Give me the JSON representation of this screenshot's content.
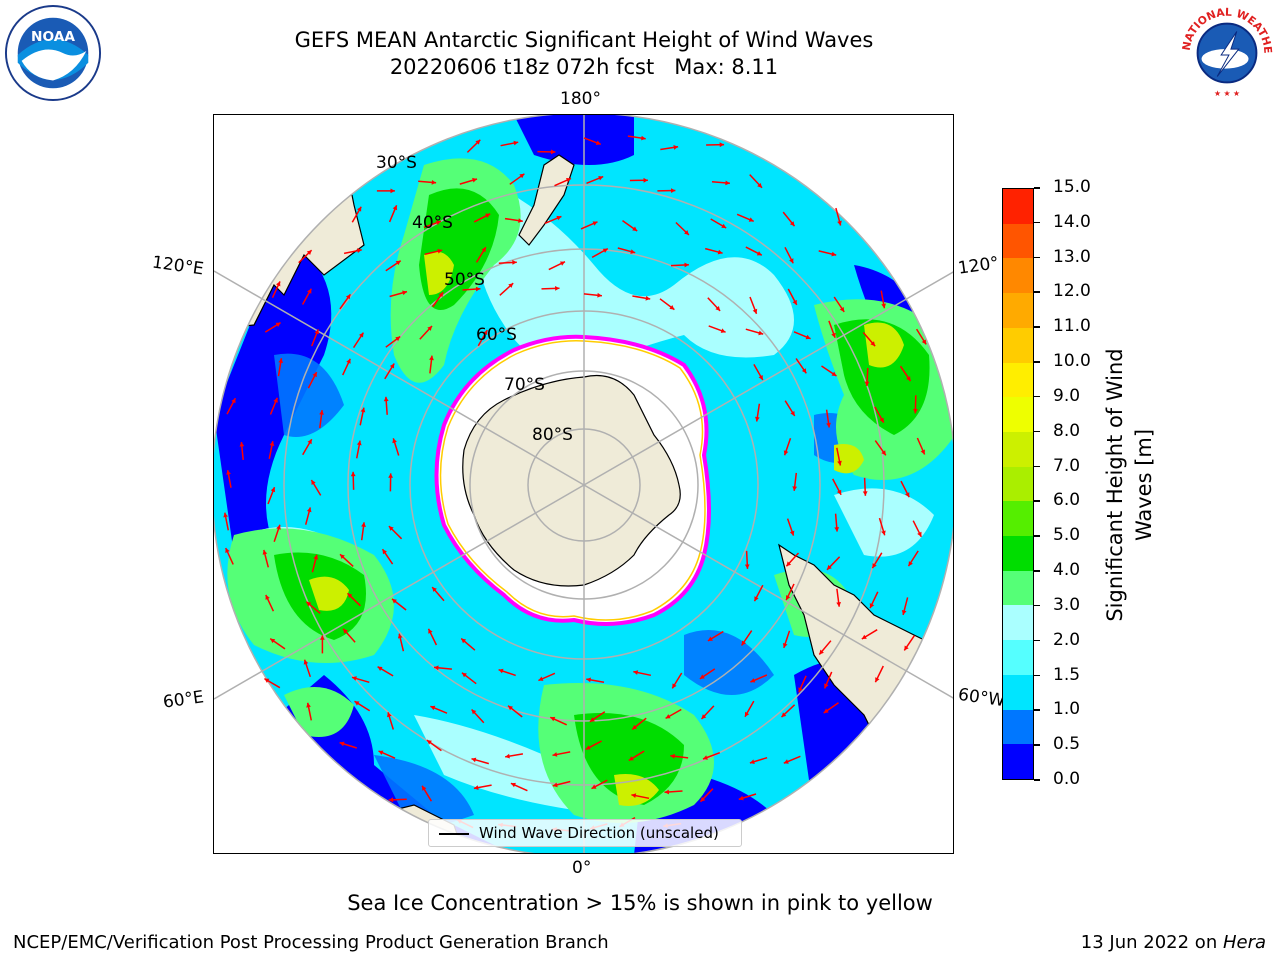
{
  "header": {
    "title_line1": "GEFS MEAN Antarctic Significant Height of Wind Waves",
    "title_line2": "20220606 t18z 072h fcst   Max: 8.11"
  },
  "logos": {
    "left": {
      "icon": "noaa-logo",
      "text": "NOAA"
    },
    "right": {
      "icon": "national-weather-service-logo",
      "text": "NATIONAL WEATHER SERVICE"
    }
  },
  "map": {
    "projection": "south-polar-stereographic",
    "longitude_labels": {
      "top": "180°",
      "bottom": "0°",
      "upper_left": "120°E",
      "lower_left": "60°E",
      "upper_right": "120°",
      "lower_right": "60°W"
    },
    "latitude_labels": [
      "30°S",
      "40°S",
      "50°S",
      "60°S",
      "70°S",
      "80°S"
    ],
    "legend_label": "Wind Wave Direction (unscaled)",
    "arrow_color": "#ff0000",
    "land_color": "#efebd8",
    "sea_ice_edge_colors": [
      "#ff00ff",
      "#ffcc00"
    ]
  },
  "colorbar": {
    "title_line1": "Significant Height of Wind",
    "title_line2": "Waves [m]",
    "tick_labels": [
      "0.0",
      "0.5",
      "1.0",
      "1.5",
      "2.0",
      "3.0",
      "4.0",
      "5.0",
      "6.0",
      "7.0",
      "8.0",
      "9.0",
      "10.0",
      "11.0",
      "12.0",
      "13.0",
      "14.0",
      "15.0"
    ],
    "colors": [
      "#0000ff",
      "#0077ff",
      "#00e5ff",
      "#55ffff",
      "#aaffff",
      "#55ff77",
      "#00dd00",
      "#55ee00",
      "#aaee00",
      "#ccf000",
      "#eeff00",
      "#ffee00",
      "#ffcc00",
      "#ffaa00",
      "#ff8800",
      "#ff5500",
      "#ff2200"
    ]
  },
  "note": "Sea Ice Concentration > 15% is shown in pink to yellow",
  "footer": {
    "left": "NCEP/EMC/Verification Post Processing Product Generation Branch",
    "right_date": "13 Jun 2022 on ",
    "right_host": "Hera"
  }
}
